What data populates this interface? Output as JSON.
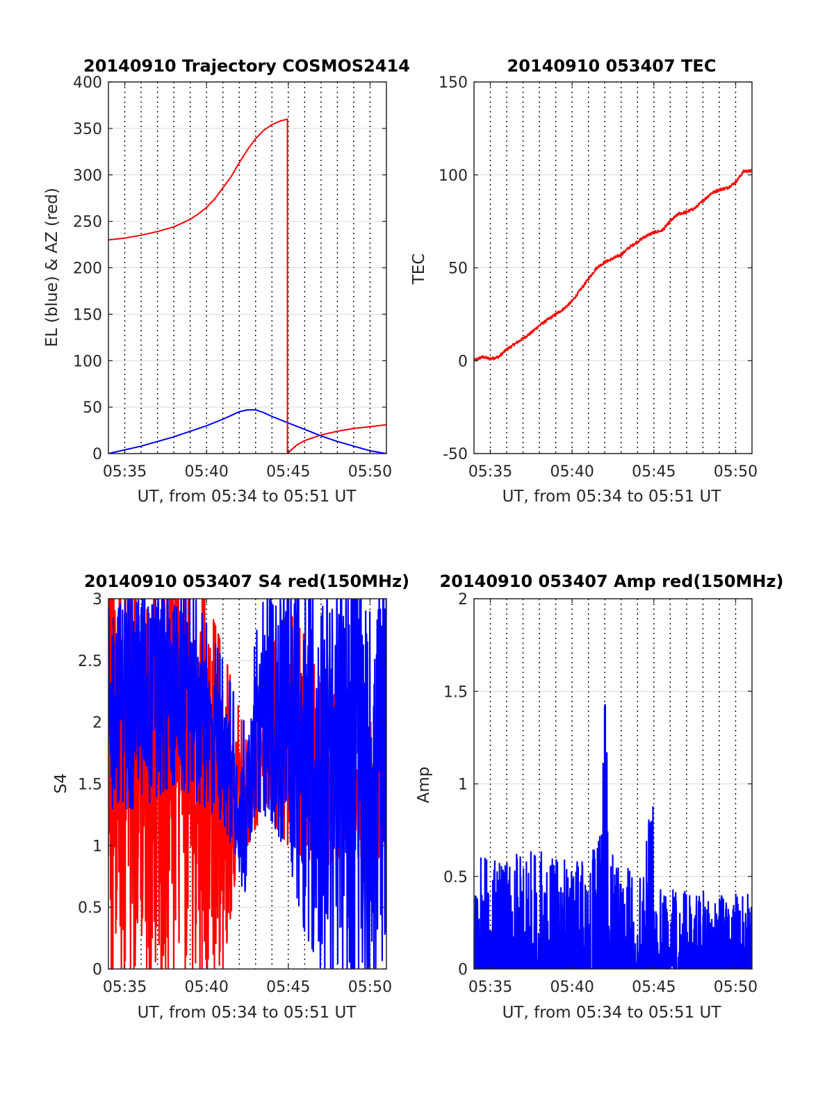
{
  "colors": {
    "red": "#ff0000",
    "blue": "#0000ff",
    "grid": "#dcdcdc",
    "vline": "#000000",
    "axis": "#262626"
  },
  "chart_data": [
    {
      "type": "line",
      "title": "20140910 Trajectory COSMOS2414",
      "xlabel": "UT, from 05:34 to 05:51 UT",
      "ylabel": "EL (blue) & AZ (red)",
      "xlim": [
        34.0,
        51.0
      ],
      "x_ticks": [
        35,
        40,
        45,
        50
      ],
      "x_tick_labels": [
        "05:35",
        "05:40",
        "05:45",
        "05:50"
      ],
      "ylim": [
        0,
        400
      ],
      "y_ticks": [
        0,
        50,
        100,
        150,
        200,
        250,
        300,
        350,
        400
      ],
      "y_tick_labels": [
        "0",
        "50",
        "100",
        "150",
        "200",
        "250",
        "300",
        "350",
        "400"
      ],
      "grid": true,
      "vertical_dotted_lines_minutes": [
        35.0,
        36.0,
        37.0,
        38.0,
        39.0,
        40.0,
        41.0,
        42.0,
        43.0,
        44.0,
        45.0,
        46.0,
        47.0,
        48.0,
        49.0,
        50.0
      ],
      "series": [
        {
          "color": "red",
          "x": [
            34.0,
            35.0,
            36.0,
            37.0,
            38.0,
            39.0,
            39.5,
            40.0,
            40.5,
            41.0,
            41.5,
            42.0,
            42.5,
            43.0,
            43.5,
            44.0,
            44.5,
            44.95,
            44.95,
            45.0,
            45.5,
            46.0,
            46.5,
            47.0,
            48.0,
            49.0,
            50.0,
            51.0
          ],
          "values": [
            230,
            232,
            235,
            239,
            244,
            252,
            258,
            265,
            274,
            286,
            298,
            313,
            327,
            339,
            348,
            354,
            358,
            360,
            0,
            1,
            9,
            14,
            17,
            20,
            24,
            27,
            29,
            31
          ]
        },
        {
          "color": "blue",
          "x": [
            34.0,
            35.0,
            36.0,
            37.0,
            38.0,
            39.0,
            40.0,
            41.0,
            41.5,
            42.0,
            42.5,
            42.8,
            43.0,
            43.5,
            44.0,
            45.0,
            46.0,
            47.0,
            48.0,
            49.0,
            50.0,
            51.0
          ],
          "values": [
            0,
            4,
            8,
            13,
            18,
            24,
            30,
            37,
            41,
            45,
            47,
            47,
            47,
            44,
            40,
            33,
            26,
            19,
            13,
            8,
            3,
            0
          ]
        }
      ]
    },
    {
      "type": "line",
      "title": "20140910 053407 TEC",
      "xlabel": "UT, from 05:34 to 05:51 UT",
      "ylabel": "TEC",
      "xlim": [
        34.0,
        51.0
      ],
      "x_ticks": [
        35,
        40,
        45,
        50
      ],
      "x_tick_labels": [
        "05:35",
        "05:40",
        "05:45",
        "05:50"
      ],
      "ylim": [
        -50,
        150
      ],
      "y_ticks": [
        -50,
        0,
        50,
        100,
        150
      ],
      "y_tick_labels": [
        "-50",
        "0",
        "50",
        "100",
        "150"
      ],
      "grid": true,
      "vertical_dotted_lines_minutes": [
        35.0,
        36.0,
        37.0,
        38.0,
        39.0,
        40.0,
        41.0,
        42.0,
        43.0,
        44.0,
        45.0,
        46.0,
        47.0,
        48.0,
        49.0,
        50.0
      ],
      "series": [
        {
          "color": "red",
          "x": [
            34.0,
            34.5,
            35.0,
            35.5,
            36.0,
            36.5,
            37.0,
            37.5,
            38.0,
            38.5,
            39.0,
            39.5,
            40.0,
            40.5,
            41.0,
            41.5,
            42.0,
            42.5,
            43.0,
            43.5,
            44.0,
            44.5,
            45.0,
            45.5,
            46.0,
            46.5,
            47.0,
            47.5,
            48.0,
            48.5,
            49.0,
            49.5,
            50.0,
            50.5,
            51.0
          ],
          "values": [
            0,
            2,
            1,
            2,
            6,
            9,
            12,
            15,
            19,
            22,
            25,
            28,
            32,
            38,
            44,
            50,
            53,
            55,
            57,
            61,
            64,
            67,
            69,
            70,
            75,
            79,
            80,
            82,
            86,
            90,
            92,
            93,
            96,
            102,
            102
          ]
        }
      ]
    },
    {
      "type": "line",
      "title": "20140910 053407 S4 red(150MHz)",
      "xlabel": "UT, from 05:34 to 05:51 UT",
      "ylabel": "S4",
      "xlim": [
        34.0,
        51.0
      ],
      "x_ticks": [
        35,
        40,
        45,
        50
      ],
      "x_tick_labels": [
        "05:35",
        "05:40",
        "05:45",
        "05:50"
      ],
      "ylim": [
        0,
        3
      ],
      "y_ticks": [
        0,
        0.5,
        1,
        1.5,
        2,
        2.5,
        3
      ],
      "y_tick_labels": [
        "0",
        "0.5",
        "1",
        "1.5",
        "2",
        "2.5",
        "3"
      ],
      "grid": true,
      "vertical_dotted_lines_minutes": [
        35.0,
        36.0,
        37.0,
        38.0,
        39.0,
        40.0,
        41.0,
        42.0,
        43.0,
        44.0,
        45.0,
        46.0,
        47.0,
        48.0,
        49.0,
        50.0
      ],
      "series": [
        {
          "color": "red",
          "noisy": true,
          "envelope_x": [
            34.0,
            35.0,
            36.0,
            37.0,
            38.0,
            39.0,
            40.0,
            41.0,
            42.0,
            42.5,
            43.0,
            43.5,
            44.0,
            45.0,
            46.0,
            47.0,
            48.0,
            49.0,
            50.0,
            51.0
          ],
          "envelope_low": [
            0,
            0,
            0,
            0,
            0,
            0,
            0,
            0,
            0.9,
            1.0,
            1.1,
            1.4,
            1.2,
            1.0,
            0.9,
            0.8,
            0.9,
            0.9,
            0.9,
            0.9
          ],
          "envelope_high": [
            3,
            3,
            3,
            3,
            3,
            2.9,
            2.7,
            2.3,
            1.8,
            1.5,
            1.8,
            2.1,
            2.3,
            2.6,
            2.4,
            2.0,
            1.9,
            1.8,
            1.7,
            1.6
          ]
        },
        {
          "color": "blue",
          "noisy": true,
          "envelope_x": [
            34.0,
            35.0,
            36.0,
            37.0,
            38.0,
            39.0,
            40.0,
            41.0,
            41.5,
            42.0,
            42.3,
            42.6,
            43.0,
            44.0,
            45.0,
            46.0,
            47.0,
            48.0,
            49.0,
            50.0,
            51.0
          ],
          "envelope_low": [
            1.3,
            1.3,
            1.3,
            1.4,
            1.5,
            1.4,
            1.3,
            1.2,
            1.0,
            0.8,
            0.55,
            1.0,
            1.3,
            1.2,
            0.9,
            0.3,
            0,
            0,
            0,
            0,
            0
          ],
          "envelope_high": [
            3,
            3,
            3,
            3,
            3,
            2.8,
            2.5,
            2.2,
            2.0,
            1.8,
            1.7,
            1.9,
            2.4,
            3,
            3,
            3,
            3,
            3,
            3,
            3,
            3
          ]
        }
      ]
    },
    {
      "type": "line",
      "title": "20140910 053407 Amp red(150MHz)",
      "xlabel": "UT, from 05:34 to 05:51 UT",
      "ylabel": "Amp",
      "xlim": [
        34.0,
        51.0
      ],
      "x_ticks": [
        35,
        40,
        45,
        50
      ],
      "x_tick_labels": [
        "05:35",
        "05:40",
        "05:45",
        "05:50"
      ],
      "ylim": [
        0,
        2
      ],
      "y_ticks": [
        0,
        0.5,
        1,
        1.5,
        2
      ],
      "y_tick_labels": [
        "0",
        "0.5",
        "1",
        "1.5",
        "2"
      ],
      "grid": true,
      "vertical_dotted_lines_minutes": [
        35.0,
        36.0,
        37.0,
        38.0,
        39.0,
        40.0,
        41.0,
        42.0,
        43.0,
        44.0,
        45.0,
        46.0,
        47.0,
        48.0,
        49.0,
        50.0
      ],
      "series": [
        {
          "color": "blue",
          "noisy": true,
          "envelope_x": [
            34.0,
            35.0,
            36.0,
            37.0,
            38.0,
            39.0,
            40.0,
            41.0,
            41.8,
            42.0,
            42.1,
            42.2,
            42.5,
            43.0,
            44.0,
            44.5,
            45.0,
            45.3,
            46.0,
            47.0,
            48.0,
            49.0,
            50.0,
            51.0
          ],
          "envelope_high": [
            0.6,
            0.6,
            0.62,
            0.62,
            0.65,
            0.6,
            0.6,
            0.6,
            0.75,
            1.55,
            1.62,
            1.0,
            0.6,
            0.55,
            0.55,
            0.8,
            0.9,
            0.5,
            0.45,
            0.42,
            0.42,
            0.4,
            0.42,
            0.4
          ]
        }
      ]
    }
  ]
}
